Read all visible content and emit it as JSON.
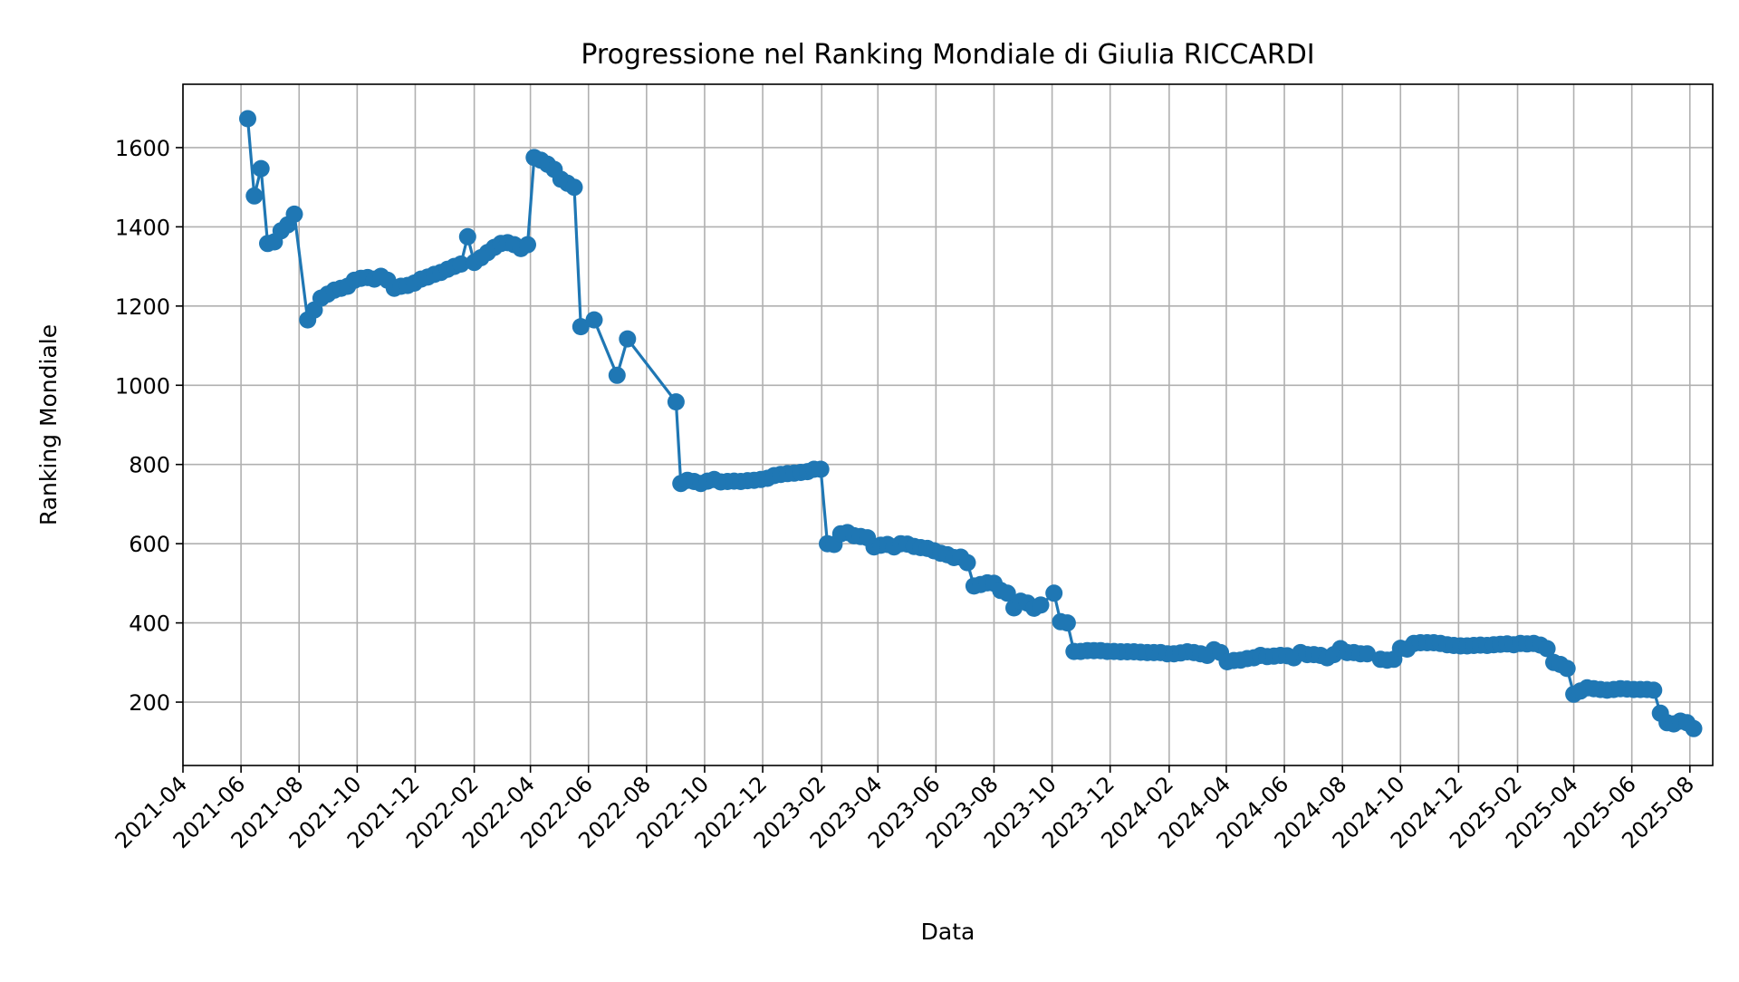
{
  "chart_data": {
    "type": "line",
    "title": "Progressione nel Ranking Mondiale di Giulia RICCARDI",
    "xlabel": "Data",
    "ylabel": "Ranking Mondiale",
    "x_axis_type": "date",
    "xlim": [
      "2021-04-01",
      "2025-08-25"
    ],
    "ylim": [
      40,
      1760
    ],
    "grid": true,
    "marker": "circle",
    "color": "#1f77b4",
    "x_ticks": [
      "2021-04",
      "2021-06",
      "2021-08",
      "2021-10",
      "2021-12",
      "2022-02",
      "2022-04",
      "2022-06",
      "2022-08",
      "2022-10",
      "2022-12",
      "2023-02",
      "2023-04",
      "2023-06",
      "2023-08",
      "2023-10",
      "2023-12",
      "2024-02",
      "2024-04",
      "2024-06",
      "2024-08",
      "2024-10",
      "2024-12",
      "2025-02",
      "2025-04",
      "2025-06",
      "2025-08"
    ],
    "y_ticks": [
      200,
      400,
      600,
      800,
      1000,
      1200,
      1400,
      1600
    ],
    "series": [
      {
        "points": [
          [
            "2021-06-08",
            1673
          ],
          [
            "2021-06-15",
            1478
          ],
          [
            "2021-06-22",
            1547
          ],
          [
            "2021-06-29",
            1358
          ],
          [
            "2021-07-06",
            1362
          ],
          [
            "2021-07-13",
            1390
          ],
          [
            "2021-07-20",
            1405
          ],
          [
            "2021-07-27",
            1432
          ],
          [
            "2021-08-10",
            1165
          ],
          [
            "2021-08-17",
            1190
          ],
          [
            "2021-08-24",
            1220
          ],
          [
            "2021-08-31",
            1230
          ],
          [
            "2021-09-07",
            1240
          ],
          [
            "2021-09-14",
            1245
          ],
          [
            "2021-09-21",
            1250
          ],
          [
            "2021-09-28",
            1265
          ],
          [
            "2021-10-05",
            1270
          ],
          [
            "2021-10-12",
            1272
          ],
          [
            "2021-10-19",
            1268
          ],
          [
            "2021-10-26",
            1275
          ],
          [
            "2021-11-02",
            1265
          ],
          [
            "2021-11-09",
            1245
          ],
          [
            "2021-11-16",
            1250
          ],
          [
            "2021-11-23",
            1252
          ],
          [
            "2021-11-30",
            1258
          ],
          [
            "2021-12-07",
            1268
          ],
          [
            "2021-12-14",
            1273
          ],
          [
            "2021-12-21",
            1280
          ],
          [
            "2021-12-28",
            1285
          ],
          [
            "2022-01-04",
            1293
          ],
          [
            "2022-01-11",
            1300
          ],
          [
            "2022-01-18",
            1306
          ],
          [
            "2022-01-25",
            1375
          ],
          [
            "2022-02-01",
            1310
          ],
          [
            "2022-02-08",
            1322
          ],
          [
            "2022-02-15",
            1335
          ],
          [
            "2022-02-22",
            1348
          ],
          [
            "2022-03-01",
            1358
          ],
          [
            "2022-03-08",
            1360
          ],
          [
            "2022-03-15",
            1355
          ],
          [
            "2022-03-22",
            1345
          ],
          [
            "2022-03-29",
            1355
          ],
          [
            "2022-04-05",
            1575
          ],
          [
            "2022-04-12",
            1568
          ],
          [
            "2022-04-19",
            1558
          ],
          [
            "2022-04-26",
            1545
          ],
          [
            "2022-05-03",
            1520
          ],
          [
            "2022-05-10",
            1510
          ],
          [
            "2022-05-17",
            1500
          ],
          [
            "2022-05-24",
            1148
          ],
          [
            "2022-06-07",
            1165
          ],
          [
            "2022-07-01",
            1025
          ],
          [
            "2022-07-12",
            1117
          ],
          [
            "2022-09-01",
            958
          ],
          [
            "2022-09-06",
            752
          ],
          [
            "2022-09-13",
            760
          ],
          [
            "2022-09-20",
            757
          ],
          [
            "2022-09-27",
            752
          ],
          [
            "2022-10-04",
            758
          ],
          [
            "2022-10-11",
            762
          ],
          [
            "2022-10-18",
            756
          ],
          [
            "2022-10-25",
            757
          ],
          [
            "2022-11-01",
            758
          ],
          [
            "2022-11-08",
            757
          ],
          [
            "2022-11-15",
            759
          ],
          [
            "2022-11-22",
            760
          ],
          [
            "2022-11-29",
            762
          ],
          [
            "2022-12-06",
            765
          ],
          [
            "2022-12-13",
            772
          ],
          [
            "2022-12-20",
            775
          ],
          [
            "2022-12-27",
            777
          ],
          [
            "2023-01-03",
            778
          ],
          [
            "2023-01-10",
            780
          ],
          [
            "2023-01-17",
            782
          ],
          [
            "2023-01-24",
            788
          ],
          [
            "2023-01-31",
            788
          ],
          [
            "2023-02-07",
            600
          ],
          [
            "2023-02-14",
            598
          ],
          [
            "2023-02-21",
            625
          ],
          [
            "2023-02-28",
            628
          ],
          [
            "2023-03-07",
            620
          ],
          [
            "2023-03-14",
            618
          ],
          [
            "2023-03-21",
            615
          ],
          [
            "2023-03-28",
            592
          ],
          [
            "2023-04-04",
            596
          ],
          [
            "2023-04-11",
            598
          ],
          [
            "2023-04-18",
            592
          ],
          [
            "2023-04-25",
            600
          ],
          [
            "2023-05-02",
            599
          ],
          [
            "2023-05-09",
            593
          ],
          [
            "2023-05-16",
            590
          ],
          [
            "2023-05-23",
            588
          ],
          [
            "2023-05-30",
            582
          ],
          [
            "2023-06-06",
            576
          ],
          [
            "2023-06-13",
            572
          ],
          [
            "2023-06-20",
            565
          ],
          [
            "2023-06-27",
            566
          ],
          [
            "2023-07-04",
            552
          ],
          [
            "2023-07-11",
            493
          ],
          [
            "2023-07-18",
            497
          ],
          [
            "2023-07-25",
            501
          ],
          [
            "2023-08-01",
            500
          ],
          [
            "2023-08-08",
            482
          ],
          [
            "2023-08-15",
            475
          ],
          [
            "2023-08-22",
            438
          ],
          [
            "2023-08-29",
            455
          ],
          [
            "2023-09-05",
            450
          ],
          [
            "2023-09-12",
            437
          ],
          [
            "2023-09-19",
            445
          ],
          [
            "2023-10-03",
            475
          ],
          [
            "2023-10-10",
            403
          ],
          [
            "2023-10-17",
            400
          ],
          [
            "2023-10-24",
            328
          ],
          [
            "2023-10-31",
            328
          ],
          [
            "2023-11-07",
            330
          ],
          [
            "2023-11-14",
            330
          ],
          [
            "2023-11-21",
            330
          ],
          [
            "2023-11-28",
            328
          ],
          [
            "2023-12-05",
            328
          ],
          [
            "2023-12-12",
            327
          ],
          [
            "2023-12-19",
            327
          ],
          [
            "2023-12-26",
            327
          ],
          [
            "2024-01-02",
            326
          ],
          [
            "2024-01-09",
            325
          ],
          [
            "2024-01-16",
            325
          ],
          [
            "2024-01-23",
            325
          ],
          [
            "2024-01-30",
            322
          ],
          [
            "2024-02-06",
            322
          ],
          [
            "2024-02-13",
            324
          ],
          [
            "2024-02-20",
            327
          ],
          [
            "2024-02-27",
            325
          ],
          [
            "2024-03-05",
            322
          ],
          [
            "2024-03-12",
            318
          ],
          [
            "2024-03-19",
            332
          ],
          [
            "2024-03-26",
            325
          ],
          [
            "2024-04-02",
            302
          ],
          [
            "2024-04-09",
            305
          ],
          [
            "2024-04-16",
            306
          ],
          [
            "2024-04-23",
            310
          ],
          [
            "2024-04-30",
            312
          ],
          [
            "2024-05-07",
            318
          ],
          [
            "2024-05-14",
            315
          ],
          [
            "2024-05-21",
            316
          ],
          [
            "2024-05-28",
            318
          ],
          [
            "2024-06-04",
            317
          ],
          [
            "2024-06-11",
            312
          ],
          [
            "2024-06-18",
            325
          ],
          [
            "2024-06-25",
            320
          ],
          [
            "2024-07-02",
            320
          ],
          [
            "2024-07-09",
            318
          ],
          [
            "2024-07-16",
            312
          ],
          [
            "2024-07-23",
            320
          ],
          [
            "2024-07-30",
            335
          ],
          [
            "2024-08-06",
            325
          ],
          [
            "2024-08-13",
            325
          ],
          [
            "2024-08-20",
            322
          ],
          [
            "2024-08-27",
            322
          ],
          [
            "2024-09-10",
            308
          ],
          [
            "2024-09-17",
            306
          ],
          [
            "2024-09-24",
            308
          ],
          [
            "2024-10-01",
            336
          ],
          [
            "2024-10-08",
            334
          ],
          [
            "2024-10-15",
            348
          ],
          [
            "2024-10-22",
            350
          ],
          [
            "2024-10-29",
            350
          ],
          [
            "2024-11-05",
            350
          ],
          [
            "2024-11-12",
            348
          ],
          [
            "2024-11-19",
            345
          ],
          [
            "2024-11-26",
            343
          ],
          [
            "2024-12-03",
            342
          ],
          [
            "2024-12-10",
            342
          ],
          [
            "2024-12-17",
            343
          ],
          [
            "2024-12-24",
            344
          ],
          [
            "2024-12-31",
            343
          ],
          [
            "2025-01-07",
            345
          ],
          [
            "2025-01-14",
            346
          ],
          [
            "2025-01-21",
            347
          ],
          [
            "2025-01-28",
            345
          ],
          [
            "2025-02-04",
            348
          ],
          [
            "2025-02-11",
            347
          ],
          [
            "2025-02-18",
            348
          ],
          [
            "2025-02-25",
            344
          ],
          [
            "2025-03-04",
            335
          ],
          [
            "2025-03-11",
            300
          ],
          [
            "2025-03-18",
            295
          ],
          [
            "2025-03-25",
            285
          ],
          [
            "2025-04-01",
            220
          ],
          [
            "2025-04-08",
            228
          ],
          [
            "2025-04-15",
            236
          ],
          [
            "2025-04-22",
            234
          ],
          [
            "2025-04-29",
            232
          ],
          [
            "2025-05-06",
            230
          ],
          [
            "2025-05-13",
            232
          ],
          [
            "2025-05-20",
            234
          ],
          [
            "2025-05-27",
            233
          ],
          [
            "2025-06-03",
            232
          ],
          [
            "2025-06-10",
            232
          ],
          [
            "2025-06-17",
            232
          ],
          [
            "2025-06-24",
            230
          ],
          [
            "2025-07-01",
            172
          ],
          [
            "2025-07-08",
            148
          ],
          [
            "2025-07-15",
            145
          ],
          [
            "2025-07-22",
            152
          ],
          [
            "2025-07-29",
            148
          ],
          [
            "2025-08-05",
            133
          ]
        ]
      }
    ]
  }
}
